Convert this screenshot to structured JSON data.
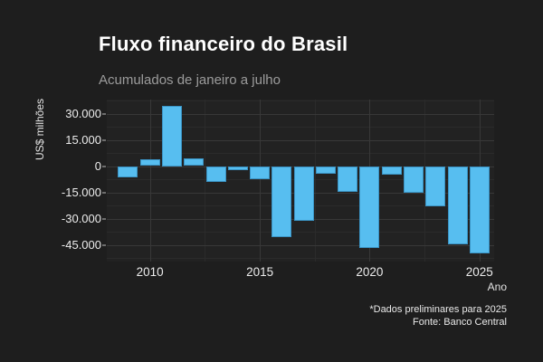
{
  "title": "Fluxo financeiro do Brasil",
  "subtitle": "Acumulados de janeiro a julho",
  "caption": {
    "note": "*Dados preliminares para 2025",
    "source": "Fonte: Banco Central"
  },
  "colors": {
    "page_background": "#1E1E1E",
    "panel_background": "#222222",
    "grid_major": "#383838",
    "grid_minor": "#2B2B2B",
    "bar_fill": "#57BEF0",
    "bar_border": "#3A93C4",
    "title_text": "#FFFFFF",
    "subtitle_text": "#9C9C9C",
    "axis_text": "#ECECEC"
  },
  "chart_data": {
    "type": "bar",
    "title": "Fluxo financeiro do Brasil",
    "subtitle": "Acumulados de janeiro a julho",
    "xlabel": "Ano",
    "ylabel": "US$ milhões",
    "categories": [
      2009,
      2010,
      2011,
      2012,
      2013,
      2014,
      2015,
      2016,
      2017,
      2018,
      2019,
      2020,
      2021,
      2022,
      2023,
      2024,
      2025
    ],
    "values": [
      -6500,
      4000,
      34500,
      4500,
      -9000,
      -2500,
      -7500,
      -40500,
      -31000,
      -4500,
      -14500,
      -46500,
      -5000,
      -15000,
      -23000,
      -44500,
      -50000
    ],
    "ylim": [
      -54500,
      38000
    ],
    "y_major_ticks": [
      30000,
      15000,
      0,
      -15000,
      -30000,
      -45000
    ],
    "y_tick_labels": [
      "30.000",
      "15.000",
      "0",
      "-15.000",
      "-30.000",
      "-45.000"
    ],
    "y_minor_step": 7500,
    "x_major_ticks": [
      2010,
      2015,
      2020,
      2025
    ],
    "x_tick_labels": [
      "2010",
      "2015",
      "2020",
      "2025"
    ],
    "grid": "major-and-minor",
    "legend": false,
    "bar_color": "#57BEF0",
    "note": "*Dados preliminares para 2025",
    "source": "Fonte: Banco Central"
  }
}
